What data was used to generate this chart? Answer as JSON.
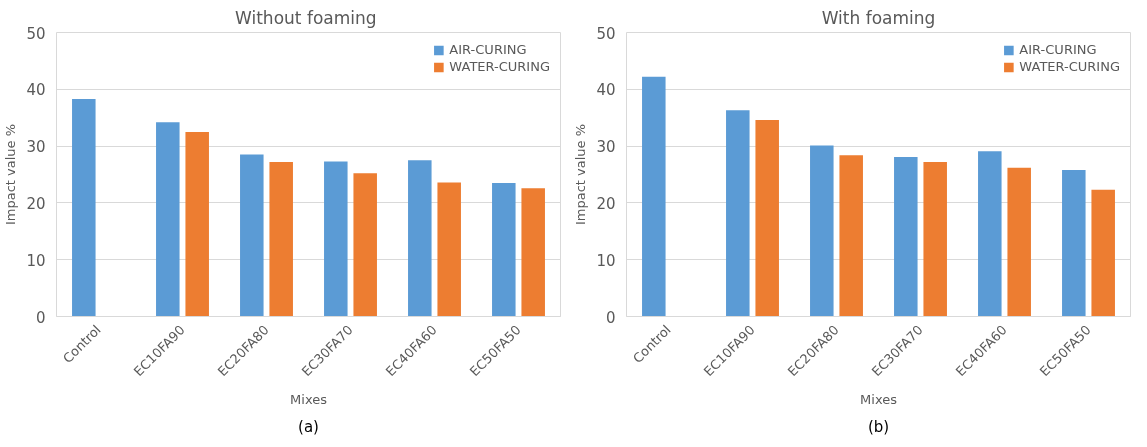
{
  "chart_data": [
    {
      "type": "bar",
      "title": "Without  foaming",
      "xlabel": "Mixes",
      "ylabel": "Impact value %",
      "annotations": [
        "(a)"
      ],
      "categories": [
        "Control",
        "EC10FA90",
        "EC20FA80",
        "EC30FA70",
        "EC40FA60",
        "EC50FA50"
      ],
      "series": [
        {
          "name": "AIR-CURING",
          "color": "#5b9bd5",
          "values": [
            38.3,
            34.2,
            28.5,
            27.3,
            27.5,
            23.5
          ]
        },
        {
          "name": "WATER-CURING",
          "color": "#ed7d31",
          "values": [
            null,
            32.5,
            27.2,
            25.2,
            23.6,
            22.6
          ]
        }
      ],
      "ylim": [
        0,
        50
      ],
      "yticks": [
        0,
        10,
        20,
        30,
        40,
        50
      ],
      "grid": "y",
      "legend": "top right"
    },
    {
      "type": "bar",
      "title": "With foaming",
      "xlabel": "Mixes",
      "ylabel": "Impact value %",
      "annotations": [
        "(b)"
      ],
      "categories": [
        "Control",
        "EC10FA90",
        "EC20FA80",
        "EC30FA70",
        "EC40FA60",
        "EC50FA50"
      ],
      "series": [
        {
          "name": "AIR-CURING",
          "color": "#5b9bd5",
          "values": [
            42.2,
            36.3,
            30.1,
            28.1,
            29.1,
            25.8
          ]
        },
        {
          "name": "WATER-CURING",
          "color": "#ed7d31",
          "values": [
            null,
            34.6,
            28.4,
            27.2,
            26.2,
            22.3
          ]
        }
      ],
      "ylim": [
        0,
        50
      ],
      "yticks": [
        0,
        10,
        20,
        30,
        40,
        50
      ],
      "grid": "y",
      "legend": "top right"
    }
  ]
}
